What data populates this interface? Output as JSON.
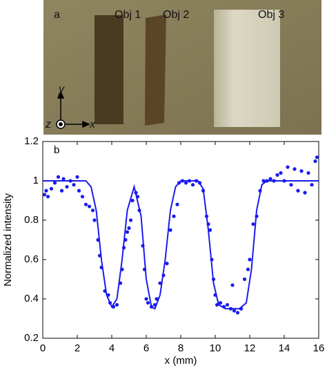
{
  "photo": {
    "label": "a",
    "objects": [
      "Obj 1",
      "Obj 2",
      "Obj 3"
    ],
    "axis_labels": [
      "y",
      "z",
      "x"
    ]
  },
  "chart_data": {
    "type": "scatter",
    "panel_label": "b",
    "xlabel": "x (mm)",
    "ylabel": "Normalized intensity",
    "xlim": [
      0,
      16
    ],
    "ylim": [
      0.2,
      1.2
    ],
    "xticks": [
      0,
      2,
      4,
      6,
      8,
      10,
      12,
      14,
      16
    ],
    "yticks": [
      0.2,
      0.4,
      0.6,
      0.8,
      1,
      1.2
    ],
    "series": [
      {
        "style": "markers",
        "color": "#1a1aee",
        "x": [
          0.1,
          0.2,
          0.3,
          0.5,
          0.7,
          0.9,
          1.1,
          1.2,
          1.4,
          1.6,
          1.8,
          2.0,
          2.1,
          2.3,
          2.5,
          2.7,
          2.9,
          3.0,
          3.2,
          3.3,
          3.4,
          3.6,
          3.8,
          3.9,
          4.1,
          4.3,
          4.5,
          4.6,
          4.7,
          4.8,
          4.9,
          5.0,
          5.1,
          5.2,
          5.4,
          5.5,
          5.6,
          5.8,
          5.9,
          6.0,
          6.1,
          6.3,
          6.5,
          6.6,
          6.8,
          7.0,
          7.2,
          7.4,
          7.6,
          7.8,
          7.9,
          8.1,
          8.3,
          8.5,
          8.7,
          8.9,
          9.1,
          9.3,
          9.5,
          9.6,
          9.7,
          9.8,
          9.9,
          10.0,
          10.1,
          10.3,
          10.5,
          10.7,
          10.9,
          11.0,
          11.1,
          11.3,
          11.5,
          11.7,
          11.9,
          12.0,
          12.2,
          12.4,
          12.6,
          12.8,
          13.0,
          13.2,
          13.4,
          13.6,
          13.8,
          14.0,
          14.2,
          14.4,
          14.6,
          14.8,
          15.0,
          15.2,
          15.4,
          15.6,
          15.8,
          15.9
        ],
        "values": [
          0.93,
          0.95,
          0.92,
          0.96,
          0.99,
          1.02,
          0.95,
          1.01,
          0.97,
          1.0,
          0.98,
          1.02,
          0.95,
          0.92,
          0.88,
          0.87,
          0.85,
          0.8,
          0.7,
          0.62,
          0.56,
          0.44,
          0.42,
          0.38,
          0.36,
          0.37,
          0.48,
          0.55,
          0.66,
          0.7,
          0.74,
          0.76,
          0.8,
          0.9,
          0.94,
          0.92,
          0.85,
          0.67,
          0.55,
          0.4,
          0.38,
          0.36,
          0.37,
          0.4,
          0.48,
          0.52,
          0.58,
          0.75,
          0.82,
          0.88,
          0.99,
          1.0,
          0.99,
          1.0,
          0.98,
          1.0,
          0.99,
          0.95,
          0.82,
          0.78,
          0.75,
          0.6,
          0.5,
          0.42,
          0.37,
          0.38,
          0.36,
          0.37,
          0.35,
          0.47,
          0.34,
          0.33,
          0.35,
          0.5,
          0.55,
          0.6,
          0.78,
          0.82,
          0.95,
          1.0,
          1.0,
          1.01,
          1.0,
          1.03,
          1.04,
          1.0,
          1.07,
          0.98,
          1.06,
          0.95,
          1.05,
          0.94,
          1.04,
          0.98,
          1.1,
          1.12
        ]
      },
      {
        "style": "line",
        "color": "#1a1aee",
        "x": [
          0,
          2.5,
          2.8,
          3.1,
          3.4,
          3.7,
          4.0,
          4.3,
          4.6,
          4.9,
          5.3,
          5.7,
          6.0,
          6.3,
          6.5,
          6.8,
          7.1,
          7.4,
          7.7,
          8,
          9,
          9.3,
          9.6,
          9.9,
          10.2,
          10.6,
          11.4,
          11.8,
          12.1,
          12.4,
          12.7,
          13,
          16
        ],
        "values": [
          1,
          1,
          0.97,
          0.85,
          0.6,
          0.42,
          0.36,
          0.4,
          0.6,
          0.85,
          0.97,
          0.82,
          0.5,
          0.36,
          0.35,
          0.42,
          0.6,
          0.85,
          0.97,
          1,
          1,
          0.96,
          0.75,
          0.48,
          0.37,
          0.35,
          0.35,
          0.38,
          0.55,
          0.85,
          0.98,
          1,
          1
        ]
      }
    ]
  }
}
